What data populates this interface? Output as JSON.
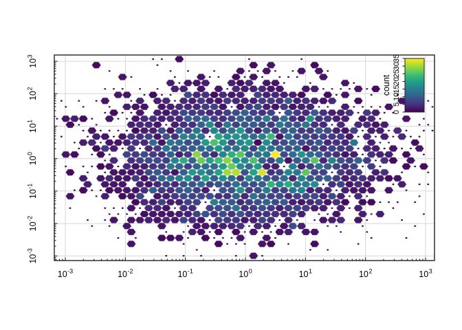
{
  "figure": {
    "background": "#ffffff"
  },
  "chart_data": {
    "type": "hexbin",
    "title": "",
    "xlabel": "",
    "ylabel": "",
    "x_scale": "log10",
    "y_scale": "log10",
    "x_tick_exponents": [
      -3,
      -2,
      -1,
      0,
      1,
      2,
      3
    ],
    "y_tick_exponents": [
      -3,
      -2,
      -1,
      0,
      1,
      2,
      3
    ],
    "x_range_log10": [
      -3.18,
      3.15
    ],
    "y_range_log10": [
      -3.15,
      3.19
    ],
    "grid": true,
    "legend": {
      "title": "count",
      "ticks": [
        0,
        5,
        10,
        15,
        20,
        25,
        30,
        35
      ],
      "min": 0,
      "max": 35,
      "position": "top-right-inside"
    },
    "colormap": {
      "name": "viridis",
      "stops": [
        "#440154",
        "#482878",
        "#3e4989",
        "#31688e",
        "#26828e",
        "#1f9e89",
        "#35b779",
        "#6ece58",
        "#b5de2b",
        "#fde725"
      ]
    },
    "bins": {
      "shape": "hexagon",
      "width_log10": 0.145,
      "height_log10": 0.184
    },
    "density_model": {
      "type": "gaussian-log10",
      "center_log10": [
        0.02,
        0.0
      ],
      "sigma_log10": [
        1.12,
        1.06
      ],
      "peak_count": 17,
      "max_count": 35,
      "noise_sd": 0.33,
      "dropout_prob": 0.05,
      "seed": 9,
      "single_count_dot": true
    },
    "highlights": [
      {
        "x_log10": 0.54,
        "y_log10": 0.14,
        "count": 35
      },
      {
        "x_log10": -0.16,
        "y_log10": -0.56,
        "count": 31
      },
      {
        "x_log10": -0.75,
        "y_log10": -0.1,
        "count": 27
      },
      {
        "x_log10": 0.95,
        "y_log10": -0.45,
        "count": 26
      },
      {
        "x_log10": -0.5,
        "y_log10": 0.5,
        "count": 25
      }
    ],
    "style": {
      "grid_color": "#d6d6d6",
      "frame_color": "#111111",
      "hex_stroke": "#dcdcdc",
      "tick_color": "#111111",
      "label_color": "#000000"
    }
  }
}
